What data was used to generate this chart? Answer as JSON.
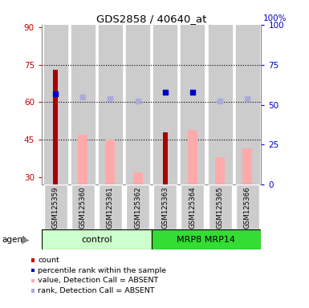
{
  "title": "GDS2858 / 40640_at",
  "samples": [
    "GSM125359",
    "GSM125360",
    "GSM125361",
    "GSM125362",
    "GSM125363",
    "GSM125364",
    "GSM125365",
    "GSM125366"
  ],
  "red_bars": [
    73.0,
    null,
    null,
    null,
    48.0,
    null,
    null,
    null
  ],
  "pink_bars": [
    null,
    47.0,
    45.0,
    32.0,
    null,
    49.0,
    38.0,
    41.5
  ],
  "blue_squares": [
    63.5,
    null,
    null,
    null,
    64.0,
    64.0,
    null,
    null
  ],
  "lavender_squares": [
    null,
    62.0,
    61.5,
    60.5,
    null,
    null,
    60.5,
    61.5
  ],
  "left_ylim": [
    27,
    91
  ],
  "left_yticks": [
    30,
    45,
    60,
    75,
    90
  ],
  "right_ylim": [
    0,
    100
  ],
  "right_yticks": [
    0,
    25,
    50,
    75,
    100
  ],
  "left_tick_color": "#cc0000",
  "right_tick_color": "#0000cc",
  "red_bar_color": "#aa0000",
  "pink_bar_color": "#ffaaaa",
  "blue_sq_color": "#0000cc",
  "lavender_sq_color": "#aaaadd",
  "bg_color": "#ffffff",
  "col_bg": "#cccccc",
  "ctrl_color": "#ccffcc",
  "mrp_color": "#33dd33",
  "legend_items": [
    "count",
    "percentile rank within the sample",
    "value, Detection Call = ABSENT",
    "rank, Detection Call = ABSENT"
  ],
  "legend_colors": [
    "#cc0000",
    "#0000cc",
    "#ffaaaa",
    "#aaaadd"
  ]
}
